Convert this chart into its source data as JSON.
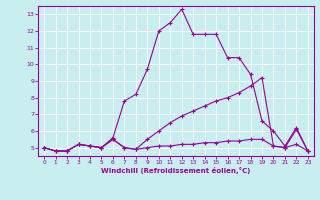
{
  "xlabel": "Windchill (Refroidissement éolien,°C)",
  "background_color": "#c8eef0",
  "line_color": "#990099",
  "grid_color": "#ffffff",
  "xlim": [
    -0.5,
    23.5
  ],
  "ylim": [
    4.5,
    13.5
  ],
  "yticks": [
    5,
    6,
    7,
    8,
    9,
    10,
    11,
    12,
    13
  ],
  "xticks": [
    0,
    1,
    2,
    3,
    4,
    5,
    6,
    7,
    8,
    9,
    10,
    11,
    12,
    13,
    14,
    15,
    16,
    17,
    18,
    19,
    20,
    21,
    22,
    23
  ],
  "lines": [
    [
      5.0,
      4.8,
      4.8,
      5.2,
      5.1,
      5.0,
      5.5,
      5.0,
      4.9,
      5.0,
      5.1,
      5.1,
      5.2,
      5.2,
      5.3,
      5.3,
      5.4,
      5.4,
      5.5,
      5.5,
      5.1,
      5.0,
      5.2,
      4.8
    ],
    [
      5.0,
      4.8,
      4.8,
      5.2,
      5.1,
      5.0,
      5.5,
      5.0,
      4.9,
      5.5,
      6.0,
      6.5,
      6.9,
      7.2,
      7.5,
      7.8,
      8.0,
      8.3,
      8.7,
      9.2,
      5.1,
      5.0,
      6.1,
      4.8
    ],
    [
      5.0,
      4.8,
      4.8,
      5.2,
      5.1,
      5.0,
      5.6,
      7.8,
      8.2,
      9.7,
      12.0,
      12.5,
      13.3,
      11.8,
      11.8,
      11.8,
      10.4,
      10.4,
      9.4,
      6.6,
      6.0,
      5.1,
      6.2,
      4.8
    ]
  ]
}
